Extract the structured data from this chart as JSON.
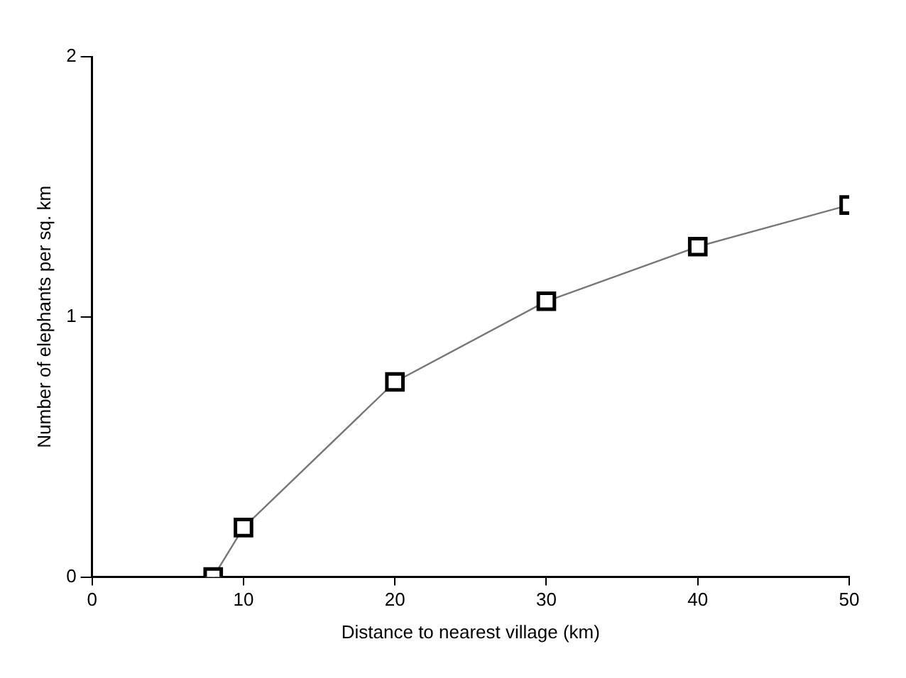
{
  "chart_data": {
    "type": "line",
    "xlabel": "Distance to nearest village (km)",
    "ylabel": "Number of elephants per sq. km",
    "x": [
      8,
      10,
      20,
      30,
      40,
      50
    ],
    "series": [
      {
        "color": "#000000",
        "values": [
          0,
          0.19,
          0.75,
          1.06,
          1.27,
          1.43
        ]
      }
    ],
    "xlim": [
      0,
      50
    ],
    "xticks": [
      0,
      10,
      20,
      30,
      40,
      50
    ],
    "ylim": [
      0,
      2
    ],
    "yticks": [
      0,
      1,
      2
    ],
    "grid": false,
    "legend": false,
    "marker": "square",
    "line_style": "solid"
  }
}
